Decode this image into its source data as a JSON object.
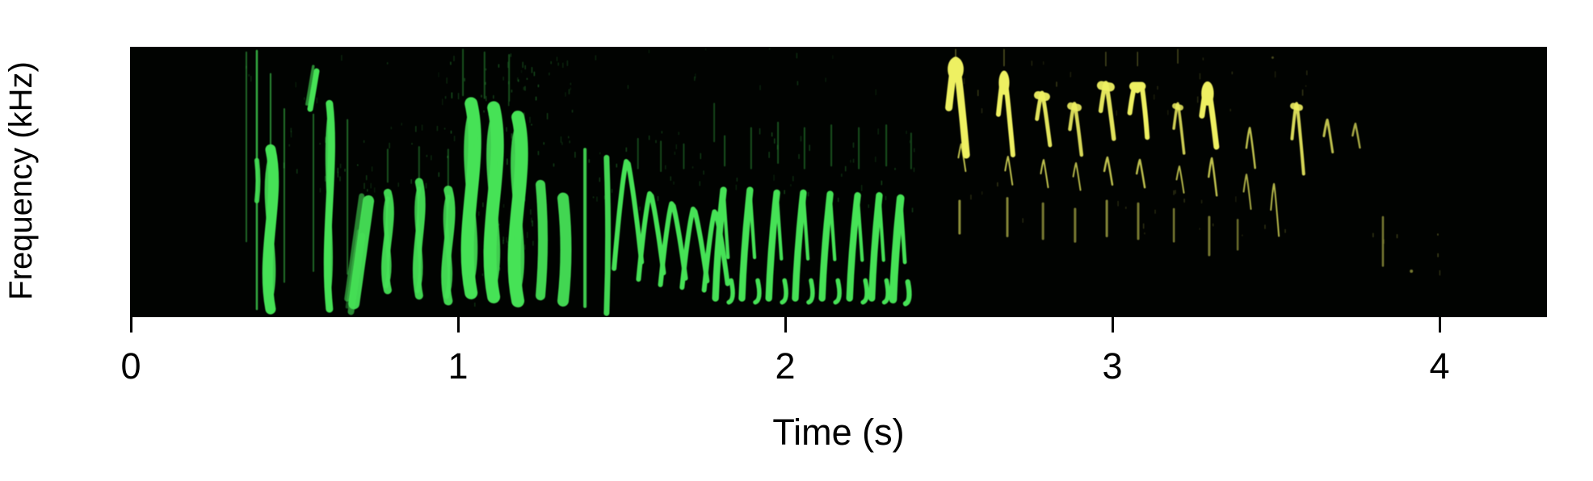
{
  "chart_data": {
    "type": "heatmap",
    "subtype": "spectrogram",
    "title": "",
    "xlabel": "Time (s)",
    "ylabel": "Frequency (kHz)",
    "x_ticks": [
      0,
      1,
      2,
      3,
      4
    ],
    "x_range_s": [
      0,
      4.33
    ],
    "y_axis_ticks": "none (unlabeled frequency scale, f given as 0-1 fraction of panel height)",
    "grid": false,
    "legend": "none",
    "background": "#010301",
    "colors": {
      "green": "#46e256",
      "yellow": "#eef062",
      "axis_text": "#000000"
    },
    "segments": [
      {
        "label": "green-vocalization",
        "color_key": "g",
        "t_start": 0.35,
        "t_end": 2.42
      },
      {
        "label": "yellow-vocalization",
        "color_key": "y",
        "t_start": 2.45,
        "t_end": 3.93
      }
    ],
    "marks_key": [
      "shape",
      "t_seconds",
      "f_low_frac",
      "f_high_frac",
      "stroke_width_px",
      "opacity",
      "color_key",
      "shape_width_px_optional"
    ],
    "shape_vocab": {
      "v": "vertical streak",
      "b": "vertical blob",
      "s": "wavy column",
      "a": "arch (inverted V, right tail longer)",
      "m": "double-peak arch",
      "c": "chevron with drooping tails",
      "n": "rise-fall syllable with hook",
      "g": "slanted streak",
      "d": "dot"
    },
    "marks": [
      [
        "v",
        0.353,
        0.28,
        0.98,
        2,
        0.45,
        "g"
      ],
      [
        "v",
        0.385,
        0.03,
        0.985,
        2.5,
        0.75,
        "g"
      ],
      [
        "b",
        0.385,
        0.43,
        0.58,
        6,
        0.9,
        "g"
      ],
      [
        "s",
        0.427,
        0.03,
        0.62,
        13,
        1,
        "g"
      ],
      [
        "v",
        0.427,
        0.6,
        0.9,
        2,
        0.6,
        "g"
      ],
      [
        "v",
        0.469,
        0.13,
        0.77,
        2,
        0.5,
        "g"
      ],
      [
        "g",
        0.558,
        0.77,
        0.91,
        7,
        1,
        "g",
        8
      ],
      [
        "v",
        0.558,
        0.17,
        0.75,
        2,
        0.45,
        "g"
      ],
      [
        "s",
        0.607,
        0.03,
        0.79,
        9,
        1,
        "g"
      ],
      [
        "v",
        0.662,
        0.16,
        0.73,
        2,
        0.45,
        "g"
      ],
      [
        "g",
        0.69,
        0.02,
        0.3,
        8,
        0.6,
        "g",
        14
      ],
      [
        "g",
        0.704,
        0.05,
        0.43,
        14,
        0.95,
        "g",
        18
      ],
      [
        "s",
        0.785,
        0.1,
        0.46,
        10,
        0.95,
        "g"
      ],
      [
        "s",
        0.881,
        0.08,
        0.5,
        10,
        0.95,
        "g"
      ],
      [
        "s",
        0.97,
        0.06,
        0.47,
        11,
        0.95,
        "g"
      ],
      [
        "v",
        0.785,
        0.5,
        0.62,
        2,
        0.35,
        "g"
      ],
      [
        "v",
        0.881,
        0.5,
        0.63,
        2,
        0.35,
        "g"
      ],
      [
        "v",
        0.97,
        0.48,
        0.62,
        2,
        0.35,
        "g"
      ],
      [
        "s",
        1.04,
        0.09,
        0.79,
        16,
        1,
        "g"
      ],
      [
        "s",
        1.109,
        0.075,
        0.775,
        16,
        1,
        "g"
      ],
      [
        "s",
        1.183,
        0.06,
        0.74,
        16,
        1,
        "g"
      ],
      [
        "v",
        1.015,
        0.82,
        0.99,
        2,
        0.35,
        "g"
      ],
      [
        "v",
        1.081,
        0.81,
        0.98,
        2,
        0.35,
        "g"
      ],
      [
        "v",
        1.156,
        0.8,
        0.97,
        2,
        0.35,
        "g"
      ],
      [
        "b",
        1.252,
        0.08,
        0.49,
        12,
        0.95,
        "g"
      ],
      [
        "b",
        1.321,
        0.06,
        0.44,
        14,
        0.95,
        "g"
      ],
      [
        "v",
        1.388,
        0.04,
        0.62,
        4,
        0.9,
        "g"
      ],
      [
        "b",
        1.454,
        0.015,
        0.59,
        7,
        0.95,
        "g"
      ],
      [
        "c",
        1.519,
        0.18,
        0.576,
        6,
        1,
        "g",
        34
      ],
      [
        "c",
        1.59,
        0.14,
        0.457,
        6,
        1,
        "g",
        31
      ],
      [
        "c",
        1.657,
        0.12,
        0.42,
        6,
        1,
        "g",
        31
      ],
      [
        "c",
        1.723,
        0.11,
        0.4,
        6,
        1,
        "g",
        31
      ],
      [
        "c",
        1.788,
        0.1,
        0.39,
        6,
        1,
        "g",
        29
      ],
      [
        "n",
        1.815,
        0.055,
        0.47,
        7,
        1,
        "g",
        30
      ],
      [
        "n",
        1.896,
        0.055,
        0.47,
        7,
        1,
        "g",
        30
      ],
      [
        "n",
        1.978,
        0.055,
        0.46,
        7,
        1,
        "g",
        30
      ],
      [
        "n",
        2.059,
        0.055,
        0.46,
        7,
        1,
        "g",
        30
      ],
      [
        "n",
        2.141,
        0.055,
        0.455,
        7,
        1,
        "g",
        30
      ],
      [
        "n",
        2.225,
        0.055,
        0.45,
        7,
        1,
        "g",
        30
      ],
      [
        "n",
        2.291,
        0.055,
        0.45,
        7,
        1,
        "g",
        28
      ],
      [
        "n",
        2.356,
        0.05,
        0.44,
        8,
        1,
        "g",
        28
      ],
      [
        "v",
        1.55,
        0.55,
        0.66,
        2,
        0.3,
        "g"
      ],
      [
        "v",
        1.62,
        0.54,
        0.65,
        2,
        0.3,
        "g"
      ],
      [
        "v",
        1.69,
        0.55,
        0.64,
        2,
        0.3,
        "g"
      ],
      [
        "v",
        1.783,
        0.65,
        0.79,
        2,
        0.3,
        "g"
      ],
      [
        "v",
        1.815,
        0.56,
        0.67,
        2,
        0.35,
        "g"
      ],
      [
        "v",
        1.896,
        0.55,
        0.7,
        2,
        0.35,
        "g"
      ],
      [
        "v",
        1.978,
        0.57,
        0.72,
        2,
        0.35,
        "g"
      ],
      [
        "v",
        2.059,
        0.55,
        0.7,
        2,
        0.35,
        "g"
      ],
      [
        "v",
        2.141,
        0.56,
        0.71,
        2,
        0.35,
        "g"
      ],
      [
        "v",
        2.225,
        0.55,
        0.7,
        2,
        0.35,
        "g"
      ],
      [
        "v",
        2.309,
        0.56,
        0.71,
        2,
        0.35,
        "g"
      ],
      [
        "v",
        2.385,
        0.55,
        0.68,
        2,
        0.3,
        "g"
      ],
      [
        "a",
        2.521,
        0.6,
        0.95,
        18,
        1,
        "y",
        24
      ],
      [
        "a",
        2.669,
        0.6,
        0.9,
        12,
        1,
        "y",
        20
      ],
      [
        "a",
        2.785,
        0.636,
        0.83,
        10,
        0.95,
        "y",
        18
      ],
      [
        "a",
        2.884,
        0.6,
        0.79,
        9,
        0.9,
        "y",
        16
      ],
      [
        "a",
        2.98,
        0.66,
        0.866,
        11,
        0.95,
        "y",
        18
      ],
      [
        "m",
        3.077,
        0.665,
        0.866,
        12,
        1,
        "y",
        24
      ],
      [
        "a",
        3.2,
        0.606,
        0.79,
        7,
        0.85,
        "y",
        14
      ],
      [
        "a",
        3.291,
        0.63,
        0.86,
        14,
        1,
        "y",
        20
      ],
      [
        "a",
        3.42,
        0.552,
        0.7,
        5,
        0.8,
        "y",
        12
      ],
      [
        "a",
        3.563,
        0.53,
        0.79,
        8,
        0.9,
        "y",
        16
      ],
      [
        "a",
        3.657,
        0.61,
        0.73,
        6,
        0.8,
        "y",
        12
      ],
      [
        "a",
        3.743,
        0.627,
        0.716,
        5,
        0.7,
        "y",
        10
      ],
      [
        "a",
        2.538,
        0.54,
        0.64,
        4,
        0.8,
        "y",
        10
      ],
      [
        "a",
        2.681,
        0.49,
        0.594,
        4,
        0.8,
        "y",
        10
      ],
      [
        "a",
        2.79,
        0.48,
        0.582,
        4,
        0.8,
        "y",
        10
      ],
      [
        "a",
        2.889,
        0.47,
        0.57,
        4,
        0.75,
        "y",
        10
      ],
      [
        "a",
        2.985,
        0.49,
        0.591,
        5,
        0.8,
        "y",
        11
      ],
      [
        "a",
        3.084,
        0.48,
        0.582,
        5,
        0.8,
        "y",
        11
      ],
      [
        "a",
        3.205,
        0.46,
        0.558,
        4,
        0.75,
        "y",
        10
      ],
      [
        "a",
        3.304,
        0.45,
        0.588,
        5,
        0.8,
        "y",
        11
      ],
      [
        "a",
        3.41,
        0.4,
        0.528,
        4,
        0.7,
        "y",
        10
      ],
      [
        "a",
        3.494,
        0.3,
        0.493,
        4,
        0.75,
        "y",
        11
      ],
      [
        "v",
        2.533,
        0.31,
        0.43,
        3,
        0.6,
        "y"
      ],
      [
        "v",
        2.679,
        0.3,
        0.44,
        3,
        0.55,
        "y"
      ],
      [
        "v",
        2.788,
        0.29,
        0.42,
        3,
        0.5,
        "y"
      ],
      [
        "v",
        2.886,
        0.28,
        0.4,
        3,
        0.5,
        "y"
      ],
      [
        "v",
        2.983,
        0.3,
        0.43,
        3,
        0.55,
        "y"
      ],
      [
        "v",
        3.079,
        0.29,
        0.42,
        3,
        0.5,
        "y"
      ],
      [
        "v",
        3.188,
        0.28,
        0.4,
        2.5,
        0.5,
        "y"
      ],
      [
        "v",
        3.296,
        0.23,
        0.37,
        3,
        0.5,
        "y"
      ],
      [
        "v",
        3.383,
        0.25,
        0.36,
        2.5,
        0.45,
        "y"
      ],
      [
        "v",
        3.827,
        0.19,
        0.37,
        2.5,
        0.5,
        "y"
      ],
      [
        "v",
        2.521,
        0.94,
        0.99,
        1.5,
        0.4,
        "y"
      ],
      [
        "v",
        2.669,
        0.93,
        0.99,
        1.5,
        0.35,
        "y"
      ],
      [
        "v",
        2.98,
        0.93,
        0.98,
        1.5,
        0.3,
        "y"
      ],
      [
        "v",
        3.077,
        0.93,
        0.98,
        1.5,
        0.3,
        "y"
      ],
      [
        "v",
        3.2,
        0.94,
        0.99,
        1.5,
        0.3,
        "y"
      ],
      [
        "d",
        3.914,
        0.17,
        0.17,
        2,
        0.5,
        "y"
      ],
      [
        "d",
        3.49,
        0.96,
        0.96,
        1.5,
        0.3,
        "y"
      ]
    ],
    "noise_regions": [
      {
        "t1": 0.95,
        "t2": 1.35,
        "f1": 0.55,
        "f2": 0.95,
        "count": 70,
        "o": 0.35,
        "c": "g"
      },
      {
        "t1": 0.45,
        "t2": 0.95,
        "f1": 0.45,
        "f2": 0.75,
        "count": 40,
        "o": 0.3,
        "c": "g"
      },
      {
        "t1": 1.35,
        "t2": 2.4,
        "f1": 0.4,
        "f2": 0.7,
        "count": 60,
        "o": 0.3,
        "c": "g"
      },
      {
        "t1": 0.35,
        "t2": 2.3,
        "f1": 0.8,
        "f2": 1.0,
        "count": 30,
        "o": 0.22,
        "c": "g"
      },
      {
        "t1": 1.02,
        "t2": 1.25,
        "f1": 0.05,
        "f2": 0.45,
        "count": 40,
        "o": 0.3,
        "c": "g"
      },
      {
        "t1": 2.5,
        "t2": 3.6,
        "f1": 0.75,
        "f2": 1.0,
        "count": 25,
        "o": 0.25,
        "c": "y"
      },
      {
        "t1": 2.5,
        "t2": 3.55,
        "f1": 0.28,
        "f2": 0.5,
        "count": 20,
        "o": 0.22,
        "c": "y"
      },
      {
        "t1": 3.75,
        "t2": 4.0,
        "f1": 0.1,
        "f2": 0.35,
        "count": 6,
        "o": 0.35,
        "c": "y"
      }
    ]
  }
}
